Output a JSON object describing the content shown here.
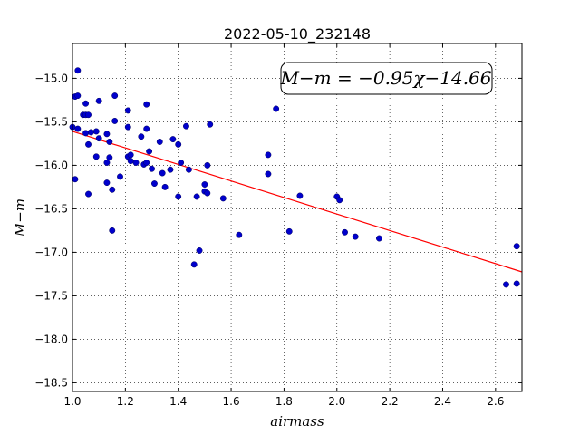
{
  "chart_data": {
    "type": "scatter",
    "title": "2022-05-10_232148",
    "xlabel": "airmass",
    "ylabel": "M−m",
    "xlim": [
      1.0,
      2.7
    ],
    "ylim": [
      -18.6,
      -14.6
    ],
    "xticks": [
      1.0,
      1.2,
      1.4,
      1.6,
      1.8,
      2.0,
      2.2,
      2.4,
      2.6
    ],
    "xtick_labels": [
      "1.0",
      "1.2",
      "1.4",
      "1.6",
      "1.8",
      "2.0",
      "2.2",
      "2.4",
      "2.6"
    ],
    "yticks": [
      -15.0,
      -15.5,
      -16.0,
      -16.5,
      -17.0,
      -17.5,
      -18.0,
      -18.5
    ],
    "ytick_labels": [
      "−15.0",
      "−15.5",
      "−16.0",
      "−16.5",
      "−17.0",
      "−17.5",
      "−18.0",
      "−18.5"
    ],
    "grid": true,
    "annotation": "M−m = −0.95χ−14.66",
    "annotation_position": "top-right",
    "fit_line": {
      "slope": -0.95,
      "intercept": -14.66,
      "color": "#ff0000"
    },
    "marker_color": "#0000cc",
    "points": [
      {
        "x": 1.0,
        "y": -15.56
      },
      {
        "x": 1.01,
        "y": -16.16
      },
      {
        "x": 1.01,
        "y": -15.21
      },
      {
        "x": 1.02,
        "y": -14.91
      },
      {
        "x": 1.02,
        "y": -15.2
      },
      {
        "x": 1.02,
        "y": -15.58
      },
      {
        "x": 1.04,
        "y": -15.42
      },
      {
        "x": 1.05,
        "y": -15.63
      },
      {
        "x": 1.05,
        "y": -15.29
      },
      {
        "x": 1.05,
        "y": -15.42
      },
      {
        "x": 1.06,
        "y": -15.42
      },
      {
        "x": 1.06,
        "y": -15.76
      },
      {
        "x": 1.06,
        "y": -16.33
      },
      {
        "x": 1.07,
        "y": -15.62
      },
      {
        "x": 1.09,
        "y": -15.61
      },
      {
        "x": 1.09,
        "y": -15.9
      },
      {
        "x": 1.1,
        "y": -15.69
      },
      {
        "x": 1.1,
        "y": -15.26
      },
      {
        "x": 1.13,
        "y": -15.64
      },
      {
        "x": 1.13,
        "y": -15.97
      },
      {
        "x": 1.13,
        "y": -16.2
      },
      {
        "x": 1.14,
        "y": -15.73
      },
      {
        "x": 1.14,
        "y": -15.91
      },
      {
        "x": 1.15,
        "y": -16.28
      },
      {
        "x": 1.15,
        "y": -16.75
      },
      {
        "x": 1.16,
        "y": -15.2
      },
      {
        "x": 1.16,
        "y": -15.49
      },
      {
        "x": 1.18,
        "y": -16.13
      },
      {
        "x": 1.21,
        "y": -15.37
      },
      {
        "x": 1.21,
        "y": -15.56
      },
      {
        "x": 1.21,
        "y": -15.9
      },
      {
        "x": 1.22,
        "y": -15.95
      },
      {
        "x": 1.22,
        "y": -15.88
      },
      {
        "x": 1.24,
        "y": -15.97
      },
      {
        "x": 1.26,
        "y": -15.67
      },
      {
        "x": 1.27,
        "y": -15.99
      },
      {
        "x": 1.28,
        "y": -15.3
      },
      {
        "x": 1.28,
        "y": -15.58
      },
      {
        "x": 1.28,
        "y": -15.97
      },
      {
        "x": 1.29,
        "y": -15.84
      },
      {
        "x": 1.3,
        "y": -16.04
      },
      {
        "x": 1.31,
        "y": -16.21
      },
      {
        "x": 1.33,
        "y": -15.73
      },
      {
        "x": 1.34,
        "y": -16.09
      },
      {
        "x": 1.35,
        "y": -16.25
      },
      {
        "x": 1.37,
        "y": -16.05
      },
      {
        "x": 1.38,
        "y": -15.7
      },
      {
        "x": 1.4,
        "y": -15.76
      },
      {
        "x": 1.4,
        "y": -16.36
      },
      {
        "x": 1.41,
        "y": -15.97
      },
      {
        "x": 1.43,
        "y": -15.55
      },
      {
        "x": 1.44,
        "y": -16.05
      },
      {
        "x": 1.46,
        "y": -17.14
      },
      {
        "x": 1.47,
        "y": -16.36
      },
      {
        "x": 1.48,
        "y": -16.98
      },
      {
        "x": 1.5,
        "y": -16.22
      },
      {
        "x": 1.5,
        "y": -16.3
      },
      {
        "x": 1.51,
        "y": -16.0
      },
      {
        "x": 1.51,
        "y": -16.32
      },
      {
        "x": 1.52,
        "y": -15.53
      },
      {
        "x": 1.57,
        "y": -16.38
      },
      {
        "x": 1.63,
        "y": -16.8
      },
      {
        "x": 1.74,
        "y": -15.88
      },
      {
        "x": 1.74,
        "y": -16.1
      },
      {
        "x": 1.77,
        "y": -15.35
      },
      {
        "x": 1.82,
        "y": -16.76
      },
      {
        "x": 1.86,
        "y": -16.35
      },
      {
        "x": 2.0,
        "y": -16.36
      },
      {
        "x": 2.01,
        "y": -16.4
      },
      {
        "x": 2.03,
        "y": -16.77
      },
      {
        "x": 2.07,
        "y": -16.82
      },
      {
        "x": 2.16,
        "y": -16.84
      },
      {
        "x": 2.64,
        "y": -17.37
      },
      {
        "x": 2.68,
        "y": -16.93
      },
      {
        "x": 2.68,
        "y": -17.36
      }
    ]
  }
}
